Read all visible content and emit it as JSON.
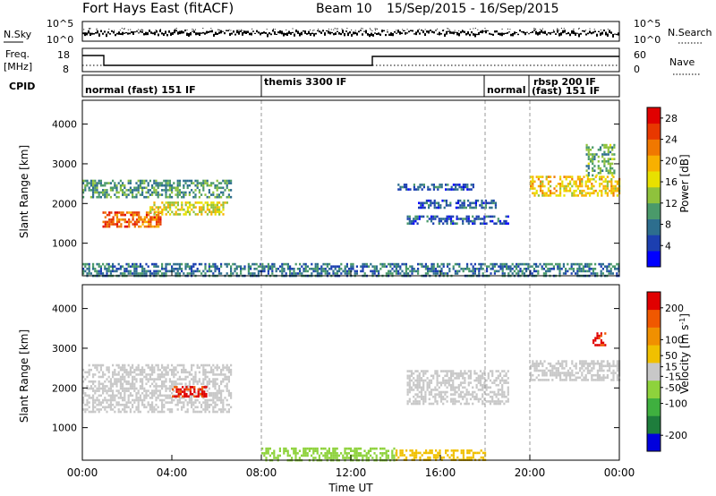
{
  "title": "Fort Hays East (fitACF)",
  "beam_label": "Beam 10",
  "date_range": "15/Sep/2015 - 16/Sep/2015",
  "noise_panel": {
    "left_label": "N.Sky",
    "right_label": "N.Search",
    "left_ticks": [
      "10^5",
      "10^0"
    ],
    "right_ticks": [
      "10^5",
      "10^0"
    ]
  },
  "freq_panel": {
    "left_label_line1": "Freq.",
    "left_label_line2": "[MHz]",
    "right_label": "Nave",
    "left_ticks": [
      "18",
      "8"
    ],
    "right_ticks": [
      "60",
      "0"
    ]
  },
  "cpid_panel": {
    "label": "CPID",
    "modes": [
      {
        "text": "normal (fast) 151 IF",
        "start_hr": 0
      },
      {
        "text": "themis 3300 IF",
        "start_hr": 8
      },
      {
        "text": "normal",
        "start_hr": 18
      },
      {
        "text": "rbsp 200 IF",
        "start_hr": 20
      },
      {
        "text": "(fast) 151 IF",
        "start_hr": 20
      }
    ]
  },
  "x_axis": {
    "label": "Time UT",
    "ticks": [
      "00:00",
      "04:00",
      "08:00",
      "12:00",
      "16:00",
      "20:00",
      "00:00"
    ],
    "tick_hours": [
      0,
      4,
      8,
      12,
      16,
      20,
      24
    ],
    "mode_change_hours": [
      8,
      18,
      20
    ]
  },
  "chart_data": [
    {
      "type": "heatmap",
      "name": "power",
      "ylabel": "Slant Range [km]",
      "yticks": [
        "1000",
        "2000",
        "3000",
        "4000"
      ],
      "ytick_values": [
        1000,
        2000,
        3000,
        4000
      ],
      "ylim": [
        180,
        4600
      ],
      "xlim": [
        0,
        24
      ],
      "colorbar_label": "Power [dB]",
      "colorbar_ticks": [
        "4",
        "8",
        "12",
        "16",
        "20",
        "24",
        "28"
      ],
      "colorbar_values": [
        4,
        8,
        12,
        16,
        20,
        24,
        28
      ],
      "colorbar_range": [
        0,
        30
      ],
      "colorbar_colors": [
        "#0000ff",
        "#1c3fb0",
        "#2d6e8e",
        "#4a9a6a",
        "#8fc23c",
        "#e8e000",
        "#f8b000",
        "#f07800",
        "#e83800",
        "#e00000"
      ],
      "regions": [
        {
          "t0": 0.0,
          "t1": 6.6,
          "r0": 2150,
          "r1": 2600,
          "value": 10
        },
        {
          "t0": 0.9,
          "t1": 3.5,
          "r0": 1400,
          "r1": 1800,
          "value": 24
        },
        {
          "t0": 3.0,
          "t1": 6.5,
          "r0": 1700,
          "r1": 2050,
          "value": 16
        },
        {
          "t0": 0.0,
          "t1": 24.0,
          "r0": 200,
          "r1": 500,
          "value": 8
        },
        {
          "t0": 14.0,
          "t1": 17.5,
          "r0": 2350,
          "r1": 2500,
          "value": 6
        },
        {
          "t0": 14.5,
          "t1": 19.0,
          "r0": 1500,
          "r1": 1700,
          "value": 6
        },
        {
          "t0": 15.0,
          "t1": 18.5,
          "r0": 1900,
          "r1": 2100,
          "value": 6
        },
        {
          "t0": 20.0,
          "t1": 24.0,
          "r0": 2200,
          "r1": 2700,
          "value": 18
        },
        {
          "t0": 22.5,
          "t1": 23.8,
          "r0": 2700,
          "r1": 3500,
          "value": 12
        }
      ]
    },
    {
      "type": "heatmap",
      "name": "velocity",
      "ylabel": "Slant Range [km]",
      "yticks": [
        "1000",
        "2000",
        "3000",
        "4000"
      ],
      "ytick_values": [
        1000,
        2000,
        3000,
        4000
      ],
      "ylim": [
        180,
        4600
      ],
      "xlim": [
        0,
        24
      ],
      "colorbar_label": "Velocity [m s^-1]",
      "colorbar_ticks": [
        "200",
        "100",
        "50",
        "15",
        "-15",
        "-50",
        "-100",
        "-200"
      ],
      "colorbar_values": [
        200,
        100,
        50,
        15,
        -15,
        -50,
        -100,
        -200
      ],
      "colorbar_range": [
        -250,
        250
      ],
      "colorbar_colors": [
        "#0000dd",
        "#1e7d3c",
        "#3fb03f",
        "#8ed23c",
        "#c8c8c8",
        "#f0c000",
        "#f09000",
        "#f05800",
        "#e00000"
      ],
      "regions": [
        {
          "t0": 0.0,
          "t1": 6.6,
          "r0": 1400,
          "r1": 2600,
          "value": 0
        },
        {
          "t0": 4.0,
          "t1": 5.5,
          "r0": 1800,
          "r1": 2050,
          "value": 200
        },
        {
          "t0": 8.0,
          "t1": 14.0,
          "r0": 200,
          "r1": 500,
          "value": -60
        },
        {
          "t0": 14.0,
          "t1": 18.0,
          "r0": 200,
          "r1": 450,
          "value": 60
        },
        {
          "t0": 14.5,
          "t1": 19.0,
          "r0": 1600,
          "r1": 2450,
          "value": 0
        },
        {
          "t0": 20.0,
          "t1": 24.0,
          "r0": 2200,
          "r1": 2700,
          "value": 0
        },
        {
          "t0": 22.8,
          "t1": 23.4,
          "r0": 3100,
          "r1": 3400,
          "value": 200
        }
      ]
    }
  ]
}
